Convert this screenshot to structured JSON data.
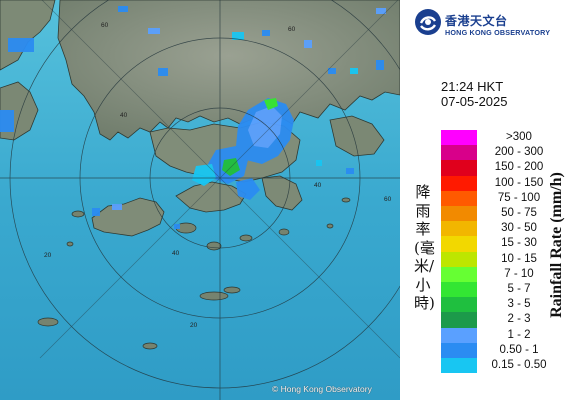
{
  "header": {
    "org_name_cn": "香港天文台",
    "org_name_en": "HONG KONG OBSERVATORY"
  },
  "timestamp": {
    "time": "21:24 HKT",
    "date": "07-05-2025"
  },
  "legend": {
    "title_cn": "降雨率(毫米/小時)",
    "title_en": "Rainfall Rate (mm/h)",
    "items": [
      {
        "label": ">300",
        "color": "#ff00ff"
      },
      {
        "label": "200 - 300",
        "color": "#d8008a"
      },
      {
        "label": "150 - 200",
        "color": "#e0001c"
      },
      {
        "label": "100 - 150",
        "color": "#ff1a00"
      },
      {
        "label": "75 - 100",
        "color": "#ff5a00"
      },
      {
        "label": "50 - 75",
        "color": "#f28a00"
      },
      {
        "label": "30 - 50",
        "color": "#f2b600"
      },
      {
        "label": "15 - 30",
        "color": "#f2d800"
      },
      {
        "label": "10 - 15",
        "color": "#bde600"
      },
      {
        "label": "7 - 10",
        "color": "#66ff33"
      },
      {
        "label": "5 - 7",
        "color": "#33e633"
      },
      {
        "label": "3 - 5",
        "color": "#1fbf3f"
      },
      {
        "label": "2 - 3",
        "color": "#1c9a4a"
      },
      {
        "label": "1 - 2",
        "color": "#5aa0ff"
      },
      {
        "label": "0.50 - 1",
        "color": "#2b8cf2"
      },
      {
        "label": "0.15 - 0.50",
        "color": "#18c6f2"
      }
    ]
  },
  "map": {
    "ring_labels": [
      "60",
      "60",
      "60",
      "40",
      "40",
      "40",
      "20",
      "20"
    ],
    "copyright": "© Hong Kong Observatory",
    "colors": {
      "sea": "#3aaed0",
      "land": "#7f8c78",
      "range_rings": "#2a3a40"
    }
  }
}
